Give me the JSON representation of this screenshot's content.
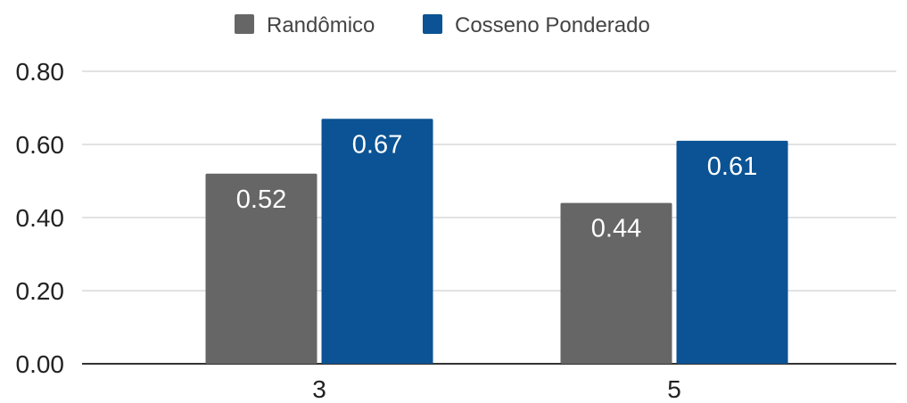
{
  "chart_data": {
    "type": "bar",
    "title": "",
    "xlabel": "",
    "ylabel": "",
    "categories": [
      "3",
      "5"
    ],
    "series": [
      {
        "name": "Randômico",
        "values": [
          0.52,
          0.44
        ],
        "labels": [
          "0.52",
          "0.44"
        ],
        "color": "#666666"
      },
      {
        "name": "Cosseno Ponderado",
        "values": [
          0.67,
          0.61
        ],
        "labels": [
          "0.67",
          "0.61"
        ],
        "color": "#0b5394"
      }
    ],
    "ylim": [
      0,
      0.8
    ],
    "yticks": [
      0,
      0.2,
      0.4,
      0.6,
      0.8
    ],
    "ytick_labels": [
      "0.00",
      "0.20",
      "0.40",
      "0.60",
      "0.80"
    ],
    "grid": true,
    "legend_position": "top-center",
    "gridline_color": "#d9d9d9",
    "axis_color": "#333333"
  }
}
